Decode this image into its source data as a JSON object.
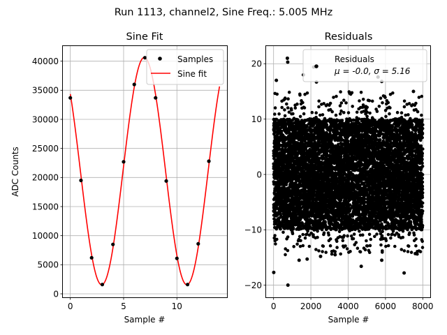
{
  "suptitle": "Run 1113, channel2, Sine Freq.: 5.005 MHz",
  "chart_data": [
    {
      "type": "line",
      "title": "Sine Fit",
      "xlabel": "Sample #",
      "ylabel": "ADC Counts",
      "xlim": [
        -0.7,
        14.7
      ],
      "ylim": [
        -600,
        42600
      ],
      "xticks": [
        0,
        5,
        10
      ],
      "yticks": [
        0,
        5000,
        10000,
        15000,
        20000,
        25000,
        30000,
        35000,
        40000
      ],
      "grid": true,
      "legend_position": "upper right",
      "fit_params": {
        "amplitude": 19550,
        "offset": 21100,
        "period": 7.99,
        "peak_sample": 6.94,
        "x_end": 14
      },
      "series": [
        {
          "name": "Samples",
          "kind": "scatter",
          "color": "#000000",
          "x": [
            0,
            1,
            2,
            3,
            4,
            5,
            6,
            7,
            8,
            9,
            10,
            11,
            12,
            13
          ],
          "y": [
            33700,
            19500,
            6200,
            1600,
            8500,
            22700,
            36000,
            40600,
            33700,
            19400,
            6100,
            1600,
            8600,
            22800
          ]
        },
        {
          "name": "Sine fit",
          "kind": "line",
          "color": "#ff0000"
        }
      ]
    },
    {
      "type": "scatter",
      "title": "Residuals",
      "xlabel": "",
      "ylabel": "",
      "xlim": [
        -400,
        8400
      ],
      "ylim": [
        -22.2,
        23.2
      ],
      "xticks": [
        0,
        2000,
        4000,
        6000,
        8000
      ],
      "yticks": [
        -20,
        -10,
        0,
        10,
        20
      ],
      "grid": true,
      "legend_position": "upper right",
      "point_count": 8000,
      "band": {
        "mean": 0.0,
        "sigma": 5.16,
        "core_low": -10,
        "core_high": 10
      },
      "series": [
        {
          "name": "Residuals",
          "kind": "scatter",
          "color": "#000000",
          "stats_label": "μ = -0.0, σ = 5.16",
          "outliers": [
            [
              740,
              21
            ],
            [
              760,
              20.3
            ],
            [
              150,
              17
            ],
            [
              1600,
              18
            ],
            [
              2300,
              16.7
            ],
            [
              2150,
              19.4
            ],
            [
              5600,
              17.6
            ],
            [
              7500,
              15
            ],
            [
              5800,
              16.8
            ],
            [
              10,
              -17.7
            ],
            [
              770,
              -20
            ],
            [
              2520,
              -14.8
            ],
            [
              4700,
              -16.6
            ],
            [
              5800,
              -15.5
            ],
            [
              7000,
              -17.8
            ],
            [
              7600,
              -14.3
            ],
            [
              1370,
              -15.5
            ],
            [
              1800,
              -15.3
            ],
            [
              3300,
              -14.5
            ]
          ]
        }
      ]
    }
  ],
  "left_sample_label": "Sample #",
  "right_sample_label": "Sample #"
}
